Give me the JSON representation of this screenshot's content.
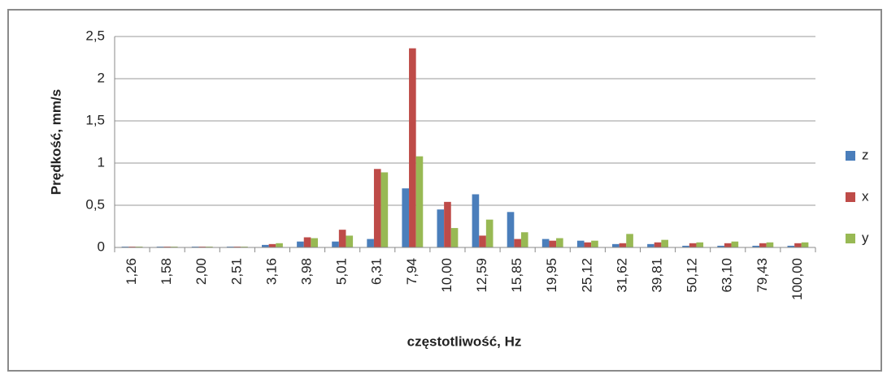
{
  "chart_data": {
    "type": "bar",
    "y_label": "Prędkość, mm/s",
    "x_label": "częstotliwość, Hz",
    "categories": [
      "1,26",
      "1,58",
      "2,00",
      "2,51",
      "3,16",
      "3,98",
      "5,01",
      "6,31",
      "7,94",
      "10,00",
      "12,59",
      "15,85",
      "19,95",
      "25,12",
      "31,62",
      "39,81",
      "50,12",
      "63,10",
      "79,43",
      "100,00"
    ],
    "series": [
      {
        "name": "z",
        "color": "#4a7ebb",
        "values": [
          0.01,
          0.01,
          0.01,
          0.01,
          0.03,
          0.07,
          0.07,
          0.1,
          0.7,
          0.45,
          0.63,
          0.42,
          0.1,
          0.08,
          0.04,
          0.04,
          0.02,
          0.02,
          0.02,
          0.02
        ]
      },
      {
        "name": "x",
        "color": "#be4b48",
        "values": [
          0.01,
          0.01,
          0.01,
          0.01,
          0.04,
          0.12,
          0.21,
          0.93,
          2.36,
          0.54,
          0.14,
          0.1,
          0.08,
          0.06,
          0.05,
          0.06,
          0.05,
          0.05,
          0.05,
          0.05
        ]
      },
      {
        "name": "y",
        "color": "#98b954",
        "values": [
          0.01,
          0.01,
          0.01,
          0.01,
          0.05,
          0.11,
          0.14,
          0.89,
          1.08,
          0.23,
          0.33,
          0.18,
          0.11,
          0.08,
          0.16,
          0.09,
          0.06,
          0.07,
          0.06,
          0.06
        ]
      }
    ],
    "ylim": [
      0,
      2.5
    ],
    "yticks": [
      0,
      {
        "value": 0.5,
        "label": "0,5"
      },
      1,
      {
        "value": 1.5,
        "label": "1,5"
      },
      2,
      {
        "value": 2.5,
        "label": "2,5"
      }
    ],
    "grid": true,
    "legend": "right"
  }
}
